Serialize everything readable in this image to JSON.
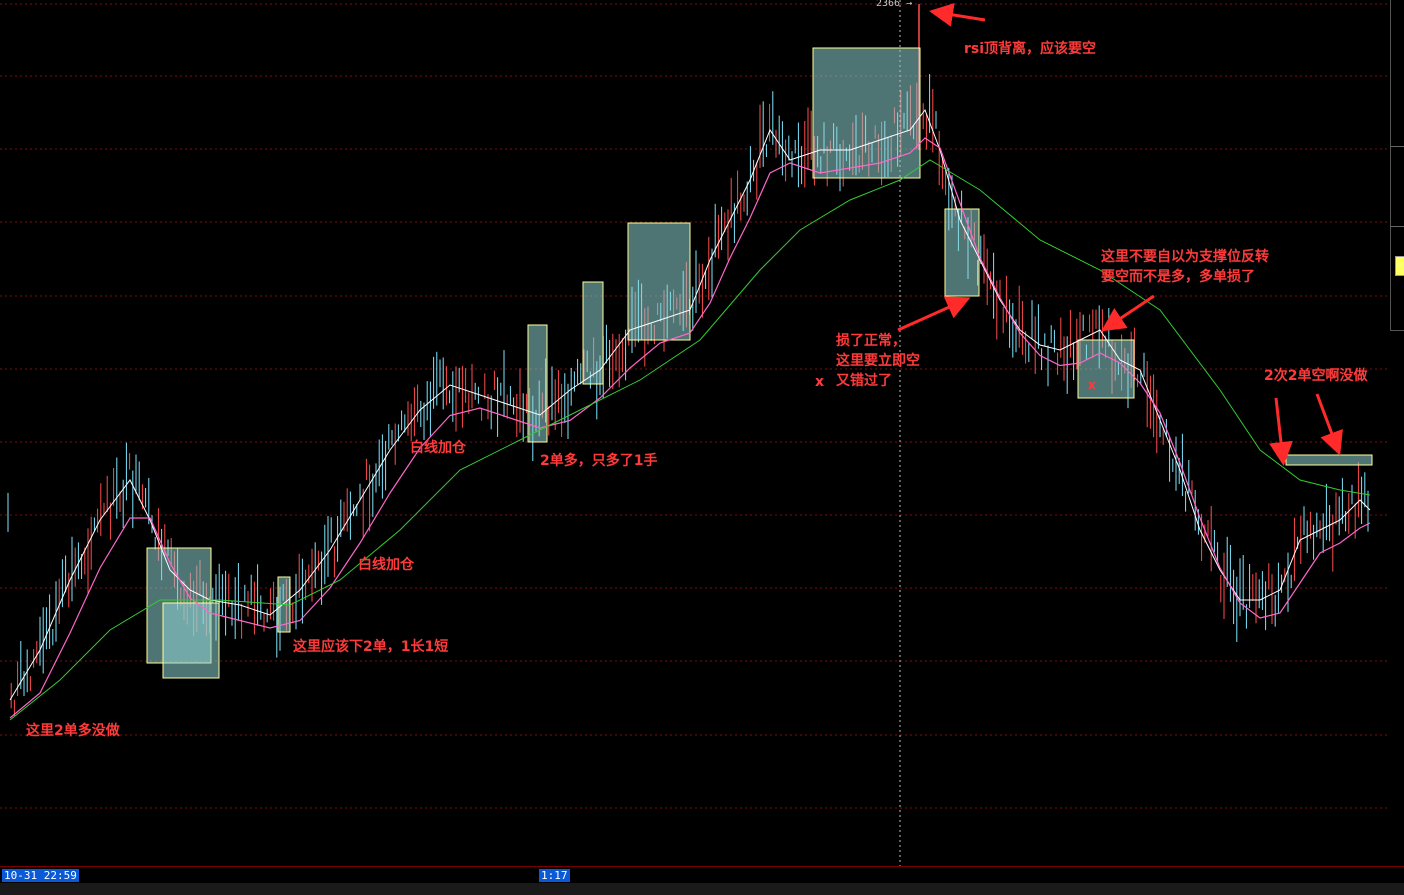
{
  "price_label": "2366",
  "annotations": {
    "rsi": "rsi顶背离，应该要空",
    "not_support_1": "这里不要自以为支撑位反转",
    "not_support_2": "要空而不是多，多单损了",
    "loss_1": "损了正常，",
    "loss_2": "这里要立即空",
    "loss_3": "又错过了",
    "x_mark": "x",
    "x_mark_red": "x",
    "two_short": "2次2单空啊没做",
    "white_add_1": "白线加仓",
    "two_long": "2单多，只多了1手",
    "white_add_2": "白线加仓",
    "should_two": "这里应该下2单，1长1短",
    "here_two_long": "这里2单多没做"
  },
  "bottom": {
    "time_left": "10-31 22:59",
    "time_cursor": "1:17"
  },
  "colors": {
    "up_bar": "#ff4d4d",
    "down_bar": "#7fe6ff",
    "ma_white": "#ffffff",
    "ma_pink": "#ff66cc",
    "ma_green": "#33cc33",
    "box_fill": "#8fd4d4",
    "box_stroke": "#ffff99",
    "grid": "#7a1010",
    "annotation": "#ff3a3a"
  }
}
